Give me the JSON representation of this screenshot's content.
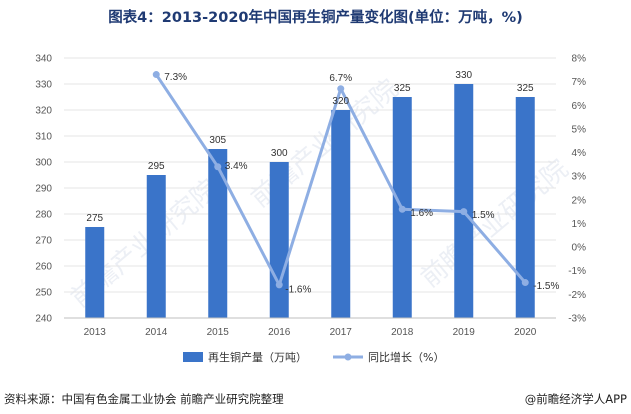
{
  "title": "图表4：2013-2020年中国再生铜产量变化图(单位：万吨，%)",
  "source": "资料来源：中国有色金属工业协会 前瞻产业研究院整理",
  "credit": "@前瞻经济学人APP",
  "watermark": "前瞻产业研究院",
  "colors": {
    "bar": "#3a74c9",
    "line": "#8eaee3",
    "grid": "#e6e6e6"
  },
  "chart_data": {
    "type": "bar+line",
    "categories": [
      "2013",
      "2014",
      "2015",
      "2016",
      "2017",
      "2018",
      "2019",
      "2020"
    ],
    "series": [
      {
        "name": "再生铜产量（万吨）",
        "type": "bar",
        "axis": "left",
        "values": [
          275,
          295,
          305,
          300,
          320,
          325,
          330,
          325
        ],
        "labels": [
          "275",
          "295",
          "305",
          "300",
          "320",
          "325",
          "330",
          "325"
        ]
      },
      {
        "name": "同比增长（%）",
        "type": "line",
        "axis": "right",
        "values": [
          null,
          7.3,
          3.4,
          -1.6,
          6.7,
          1.6,
          1.5,
          -1.5
        ],
        "labels": [
          "",
          "7.3%",
          "3.4%",
          "-1.6%",
          "6.7%",
          "1.6%",
          "1.5%",
          "-1.5%"
        ]
      }
    ],
    "left_axis": {
      "min": 240,
      "max": 340,
      "step": 10
    },
    "right_axis": {
      "min": -3,
      "max": 8,
      "step": 1,
      "suffix": "%"
    },
    "legend": "bottom"
  }
}
